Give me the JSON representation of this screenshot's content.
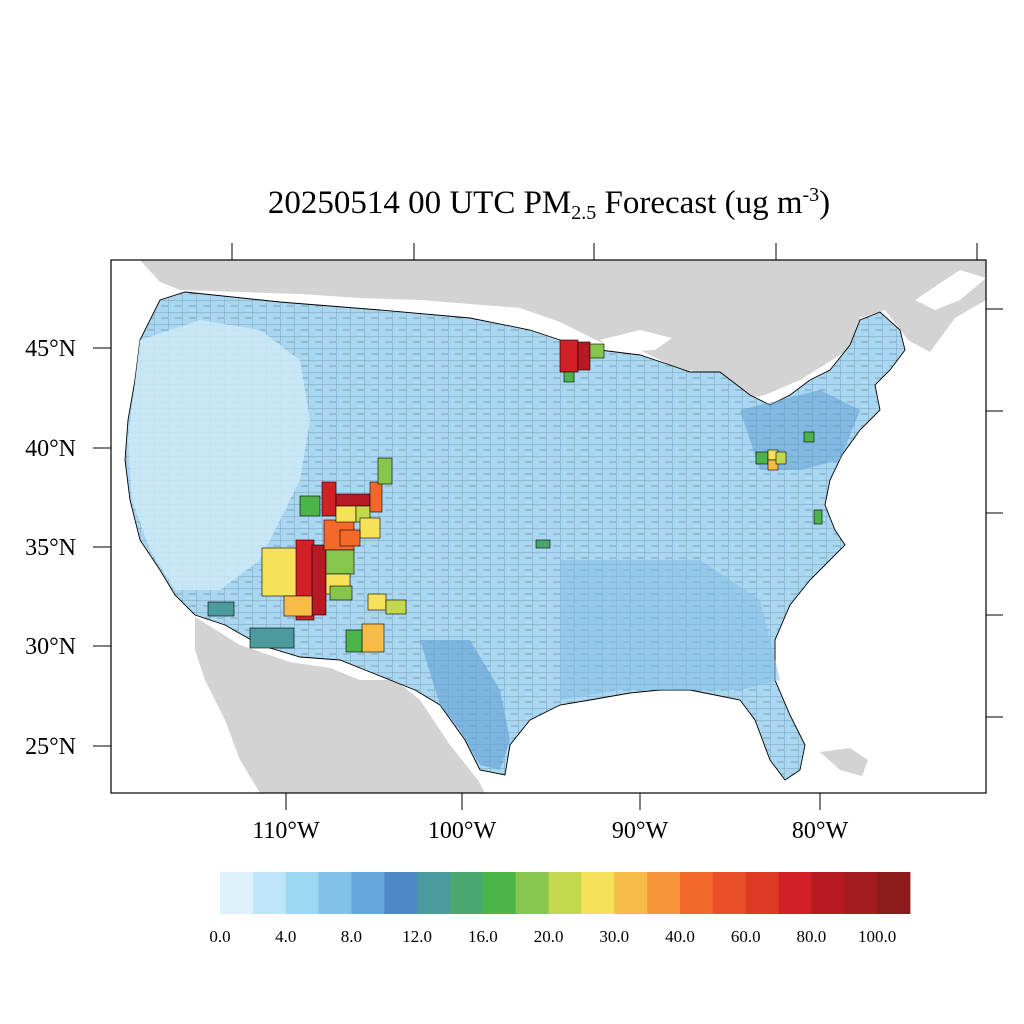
{
  "title": {
    "prefix": "20250514 00 UTC PM",
    "sub": "2.5",
    "middle": " Forecast (ug m",
    "sup": "-3",
    "suffix": ")"
  },
  "map": {
    "lat_labels": [
      "45°N",
      "40°N",
      "35°N",
      "30°N",
      "25°N"
    ],
    "lon_labels": [
      "110°W",
      "100°W",
      "90°W",
      "80°W"
    ],
    "colors": {
      "ocean": "#ffffff",
      "land_outside": "#d3d3d3",
      "border": "#000000"
    },
    "features": [
      "Elevated PM2.5 (40–100+) over Arizona / New Mexico / Colorado",
      "Elevated PM2.5 (60–100) over northern Minnesota",
      "Moderate PM2.5 (16–40) over Pennsylvania / Ohio region"
    ]
  },
  "colorbar": {
    "labels": [
      "0.0",
      "4.0",
      "8.0",
      "12.0",
      "16.0",
      "20.0",
      "30.0",
      "40.0",
      "60.0",
      "80.0",
      "100.0"
    ],
    "colors": [
      "#ddf2fb",
      "#bfe5f8",
      "#9dd7f3",
      "#82c1e8",
      "#67a8dc",
      "#4e89c8",
      "#4a9a9e",
      "#4aa86e",
      "#4cb54a",
      "#86c64c",
      "#c4d84f",
      "#f6e259",
      "#f7bc47",
      "#f6953a",
      "#f2692a",
      "#e9502a",
      "#df3a26",
      "#d32027",
      "#b81a24",
      "#a31a1f",
      "#8b1a1a"
    ]
  }
}
